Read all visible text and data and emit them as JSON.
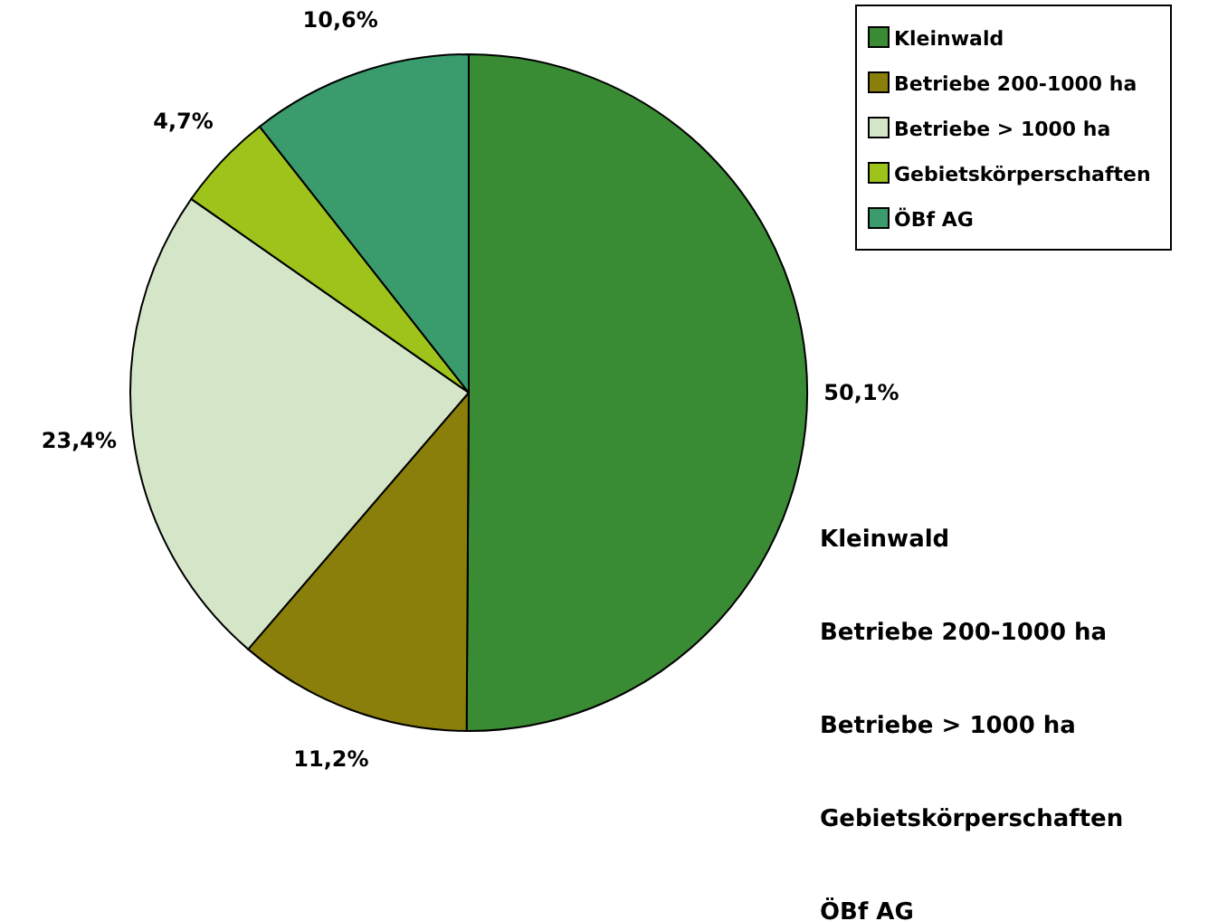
{
  "chart_data": {
    "type": "pie",
    "categories": [
      "Kleinwald",
      "Betriebe 200-1000 ha",
      "Betriebe > 1000 ha",
      "Gebietskörperschaften",
      "ÖBf AG"
    ],
    "values": [
      50.1,
      11.2,
      23.4,
      4.7,
      10.6
    ],
    "value_labels": [
      "50,1%",
      "11,2%",
      "23,4%",
      "4,7%",
      "10,6%"
    ],
    "colors": [
      "#3a8c34",
      "#8a7f0a",
      "#d5e6c8",
      "#9ec41b",
      "#3a9c6c"
    ],
    "legend": "top right",
    "annotations": [
      "Kleinwald",
      "Betriebe 200-1000 ha",
      "Betriebe > 1000 ha",
      "Gebietskörperschaften",
      "ÖBf AG"
    ]
  }
}
